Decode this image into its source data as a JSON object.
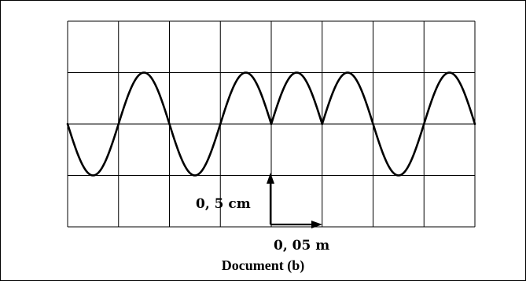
{
  "figure": {
    "caption": "Document (b)",
    "vertical_scale_label": "0, 5 cm",
    "horizontal_scale_label": "0, 05 m"
  },
  "grid": {
    "columns": 8,
    "rows": 4
  },
  "wave": {
    "description_segments": [
      {
        "from_col": 0,
        "to_col": 4,
        "shape": "sine",
        "period_cols": 2,
        "phase": "starts at center going down"
      },
      {
        "from_col": 4,
        "to_col": 5,
        "shape": "positive half-wave",
        "period_cols": 2
      },
      {
        "from_col": 5,
        "to_col": 8,
        "shape": "sine",
        "period_cols": 2,
        "phase": "starts at center going up"
      }
    ],
    "amplitude_rows": 1
  }
}
